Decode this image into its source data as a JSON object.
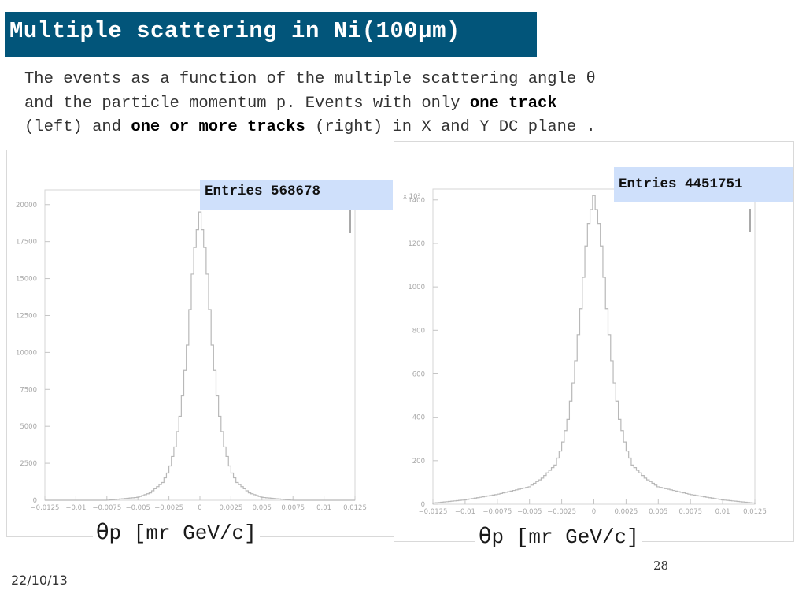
{
  "slide": {
    "title": "Multiple scattering in Ni(100µm)",
    "description": {
      "line1": "The events as a function of the multiple scattering angle θ",
      "line2_pre": "and the particle momentum p. Events with only ",
      "line2_bold": "one track",
      "line3_pre": "(left) and ",
      "line3_bold": "one or more tracks",
      "line3_post": " (right) in X and Y DC plane ."
    },
    "footer_date": "22/10/13",
    "page_number": "28"
  },
  "left_plot": {
    "entries_label": "Entries 568678",
    "axis_caption_symbol": "θ",
    "axis_caption_text": "p [mr GeV/c]"
  },
  "right_plot": {
    "entries_label": "Entries 4451751",
    "axis_caption_symbol": "θ",
    "axis_caption_text": "p [mr GeV/c]"
  },
  "colors": {
    "title_bar": "#02557a",
    "entries_box": "#cfe0fb",
    "histogram_line": "#b8b8b8"
  },
  "chart_data": [
    {
      "type": "area",
      "entries": 568678,
      "xlim": [
        -0.0125,
        0.0125
      ],
      "ylim": [
        0,
        21000
      ],
      "x_ticks": [
        -0.0125,
        -0.01,
        -0.0075,
        -0.005,
        -0.0025,
        0,
        0.0025,
        0.005,
        0.0075,
        0.01,
        0.0125
      ],
      "x_tick_labels": [
        "−0.0125",
        "−0.01",
        "−0.0075",
        "−0.005",
        "−0.0025",
        "0",
        "0.0025",
        "0.005",
        "0.0075",
        "0.01",
        "0.0125"
      ],
      "y_ticks": [
        0,
        2500,
        5000,
        7500,
        10000,
        12500,
        15000,
        17500,
        20000
      ],
      "y_tick_labels": [
        "0",
        "2500",
        "5000",
        "7500",
        "10000",
        "12500",
        "15000",
        "17500",
        "20000"
      ],
      "y_exponent_label": "",
      "x": [
        -0.0125,
        -0.01,
        -0.0075,
        -0.005,
        -0.004,
        -0.003,
        -0.0025,
        -0.002,
        -0.0015,
        -0.001,
        -0.0005,
        0,
        0.0005,
        0.001,
        0.0015,
        0.002,
        0.0025,
        0.003,
        0.004,
        0.005,
        0.0075,
        0.01,
        0.0125
      ],
      "y": [
        0,
        0,
        0,
        200,
        500,
        1200,
        2000,
        3600,
        6200,
        10500,
        16500,
        19500,
        16500,
        10500,
        6200,
        3600,
        2000,
        1200,
        500,
        200,
        0,
        0,
        0
      ],
      "grid": false
    },
    {
      "type": "area",
      "entries": 4451751,
      "xlim": [
        -0.0125,
        0.0125
      ],
      "ylim": [
        0,
        1450
      ],
      "x_ticks": [
        -0.0125,
        -0.01,
        -0.0075,
        -0.005,
        -0.0025,
        0,
        0.0025,
        0.005,
        0.0075,
        0.01,
        0.0125
      ],
      "x_tick_labels": [
        "−0.0125",
        "−0.01",
        "−0.0075",
        "−0.005",
        "−0.0025",
        "0",
        "0.0025",
        "0.005",
        "0.0075",
        "0.01",
        "0.0125"
      ],
      "y_ticks": [
        0,
        200,
        400,
        600,
        800,
        1000,
        1200,
        1400
      ],
      "y_tick_labels": [
        "0",
        "200",
        "400",
        "600",
        "800",
        "1000",
        "1200",
        "1400"
      ],
      "y_exponent_label": "x 10²",
      "x": [
        -0.0125,
        -0.01,
        -0.0075,
        -0.005,
        -0.004,
        -0.003,
        -0.0025,
        -0.002,
        -0.0015,
        -0.001,
        -0.0005,
        0,
        0.0005,
        0.001,
        0.0015,
        0.002,
        0.0025,
        0.003,
        0.004,
        0.005,
        0.0075,
        0.01,
        0.0125
      ],
      "y": [
        5,
        20,
        45,
        80,
        120,
        180,
        260,
        390,
        600,
        900,
        1260,
        1420,
        1260,
        900,
        600,
        390,
        260,
        180,
        120,
        80,
        45,
        20,
        5
      ],
      "grid": false
    }
  ]
}
